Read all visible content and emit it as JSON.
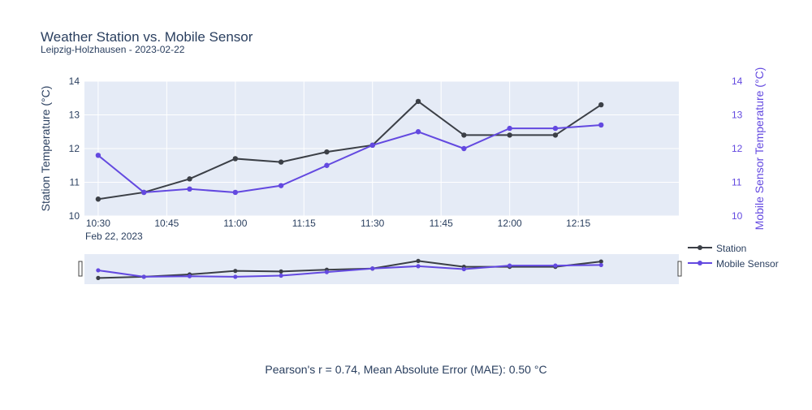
{
  "chart_data": {
    "type": "line",
    "title": "Weather Station vs. Mobile Sensor",
    "subtitle": "Leipzig-Holzhausen - 2023-02-22",
    "xlabel": "",
    "date_label": "Feb 22, 2023",
    "x": [
      "10:30",
      "10:40",
      "10:50",
      "11:00",
      "11:10",
      "11:20",
      "11:30",
      "11:40",
      "11:50",
      "12:00",
      "12:10",
      "12:20"
    ],
    "x_tick_labels": [
      "10:30",
      "10:45",
      "11:00",
      "11:15",
      "11:30",
      "11:45",
      "12:00",
      "12:15"
    ],
    "xlim": [
      "10:27",
      "12:37"
    ],
    "y_left": {
      "label": "Station Temperature (°C)",
      "range": [
        10,
        14
      ],
      "ticks": [
        "10",
        "11",
        "12",
        "13",
        "14"
      ]
    },
    "y_right": {
      "label": "Mobile Sensor Temperature (°C)",
      "range": [
        10,
        14
      ],
      "ticks": [
        "10",
        "11",
        "12",
        "13",
        "14"
      ]
    },
    "series": [
      {
        "name": "Station",
        "axis": "left",
        "color": "#3b3f46",
        "values": [
          10.5,
          10.7,
          11.1,
          11.7,
          11.6,
          11.9,
          12.1,
          13.4,
          12.4,
          12.4,
          12.4,
          13.3
        ]
      },
      {
        "name": "Mobile Sensor",
        "axis": "right",
        "color": "#6349e0",
        "values": [
          11.8,
          10.7,
          10.8,
          10.7,
          10.9,
          11.5,
          12.1,
          12.5,
          12.0,
          12.6,
          12.6,
          12.7
        ]
      }
    ],
    "legend_position": "right",
    "grid": true,
    "rangeslider": true
  },
  "footer": {
    "stats_text": "Pearson's r = 0.74,  Mean Absolute Error (MAE): 0.50 °C"
  },
  "colors": {
    "plot_bg": "#e5ebf6",
    "station": "#3b3f46",
    "mobile": "#6349e0",
    "text": "#2a3f5f"
  }
}
